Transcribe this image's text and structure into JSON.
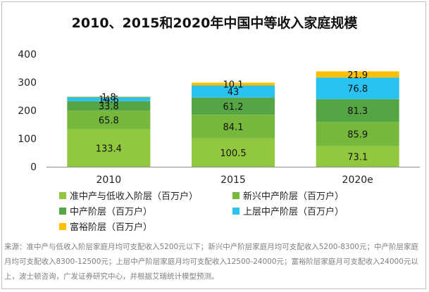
{
  "chart_data": {
    "type": "bar",
    "stacked": true,
    "title": "2010、2015和2020年中国中等收入家庭规模",
    "categories": [
      "2010",
      "2015",
      "2020e"
    ],
    "ylim": [
      0,
      400
    ],
    "yticks": [
      "0",
      "100",
      "200",
      "300",
      "400"
    ],
    "grid": false,
    "series": [
      {
        "name": "准中产与低收入阶层（百万户）",
        "color": "#92c83e",
        "values": [
          133.4,
          100.5,
          73.1
        ],
        "labels": [
          "133.4",
          "100.5",
          "73.1"
        ]
      },
      {
        "name": "新兴中产阶层（百万户）",
        "color": "#76b83c",
        "values": [
          65.8,
          84.1,
          85.9
        ],
        "labels": [
          "65.8",
          "84.1",
          "85.9"
        ]
      },
      {
        "name": "中产阶层（百万户）",
        "color": "#56a545",
        "values": [
          33.8,
          61.2,
          81.3
        ],
        "labels": [
          "33.8",
          "61.2",
          "81.3"
        ]
      },
      {
        "name": "上层中产阶层（百万户）",
        "color": "#2ac3ef",
        "values": [
          14.6,
          43,
          76.8
        ],
        "labels": [
          "14.6",
          "43",
          "76.8"
        ]
      },
      {
        "name": "富裕阶层（百万户）",
        "color": "#ffc000",
        "values": [
          1.8,
          10.1,
          21.9
        ],
        "labels": [
          "1.8",
          "10.1",
          "21.9"
        ]
      }
    ]
  },
  "source_note": "来源：准中产与低收入阶层家庭月均可支配收入5200元以下；新兴中产阶层家庭月均可支配收入5200-8300元；中产阶层家庭月均可支配收入8300-12500元；上层中产阶层家庭月均可支配收入12500-24000元；富裕阶层家庭月可支配收入24000元以上，波士顿咨询，广发证券研究中心，并根据艾瑞统计模型预测。"
}
